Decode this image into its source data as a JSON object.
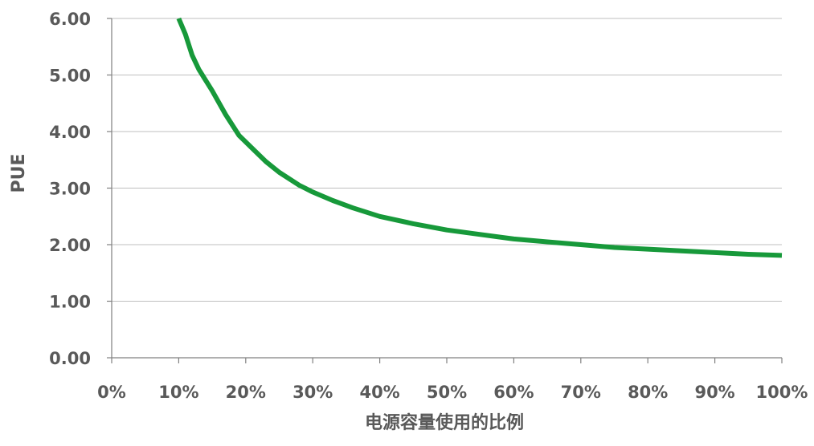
{
  "chart_data": {
    "type": "line",
    "title": "",
    "xlabel": "电源容量使用的比例",
    "ylabel": "PUE",
    "xlim": [
      0,
      100
    ],
    "ylim": [
      0,
      6
    ],
    "grid": true,
    "legend": "none",
    "x_tick_labels": [
      "0%",
      "10%",
      "20%",
      "30%",
      "40%",
      "50%",
      "60%",
      "70%",
      "80%",
      "90%",
      "100%"
    ],
    "y_tick_labels": [
      "0.00",
      "1.00",
      "2.00",
      "3.00",
      "4.00",
      "5.00",
      "6.00"
    ],
    "series": [
      {
        "color": "#17993a",
        "x": [
          10,
          11,
          12,
          13,
          15,
          17,
          19,
          21,
          23,
          25,
          28,
          30,
          33,
          36,
          40,
          45,
          50,
          55,
          60,
          65,
          70,
          75,
          80,
          85,
          90,
          95,
          100
        ],
        "y": [
          6.0,
          5.72,
          5.35,
          5.1,
          4.72,
          4.3,
          3.93,
          3.7,
          3.47,
          3.28,
          3.05,
          2.93,
          2.78,
          2.65,
          2.5,
          2.37,
          2.26,
          2.18,
          2.1,
          2.05,
          2.0,
          1.95,
          1.92,
          1.89,
          1.86,
          1.83,
          1.81
        ]
      }
    ]
  }
}
